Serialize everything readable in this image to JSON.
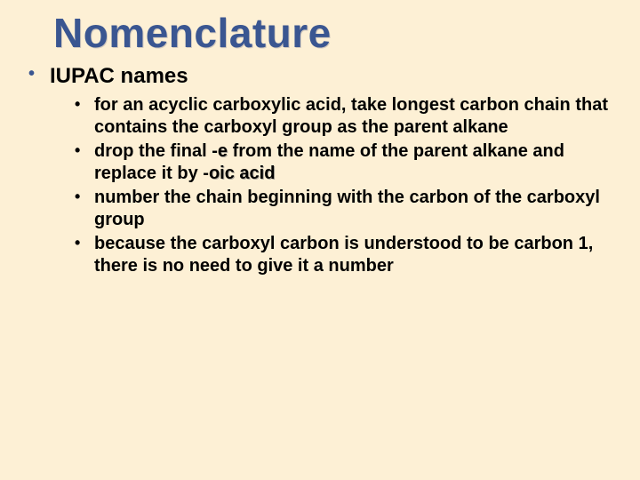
{
  "colors": {
    "background": "#fdf0d5",
    "title": "#3a5691",
    "bullet_level1": "#3a5691",
    "text": "#000000"
  },
  "typography": {
    "title_fontsize": 46,
    "level1_fontsize": 24,
    "level2_fontsize": 20,
    "font_family": "Arial",
    "font_weight": "bold"
  },
  "title": "Nomenclature",
  "heading": "IUPAC names",
  "bullets": {
    "b1a": "for an acyclic carboxylic acid, take longest carbon chain that contains the carboxyl group as the parent alkane",
    "b2a": "drop the final -",
    "b2e": "e",
    "b2b": " from the name of the parent alkane and replace it by -",
    "b2oic": "oic acid",
    "b3a": "number the chain beginning with the carbon of the carboxyl group",
    "b4a": "because the carboxyl carbon is understood to be carbon 1, there is no need to give it a number"
  }
}
